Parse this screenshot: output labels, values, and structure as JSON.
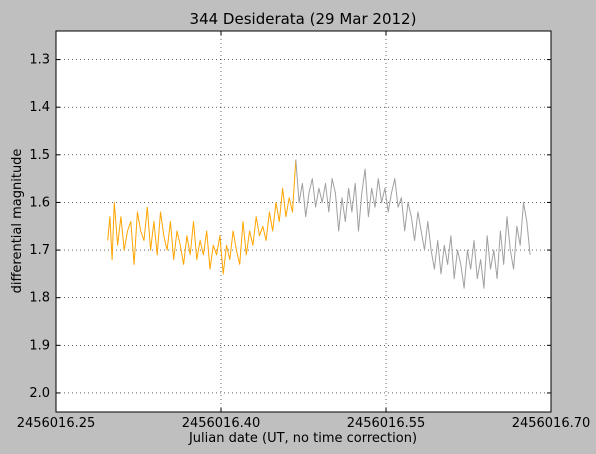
{
  "chart_data": {
    "type": "line",
    "title": "344 Desiderata (29 Mar 2012)",
    "xlabel": "Julian date (UT, no time correction)",
    "ylabel": "differential magnitude",
    "xlim": [
      2456016.25,
      2456016.7
    ],
    "ylim": [
      2.04,
      1.24
    ],
    "y_inverted": true,
    "grid": true,
    "x_ticks": [
      2456016.25,
      2456016.4,
      2456016.55,
      2456016.7
    ],
    "x_tick_labels": [
      "2456016.25",
      "2456016.40",
      "2456016.55",
      "2456016.70"
    ],
    "y_ticks": [
      1.3,
      1.4,
      1.5,
      1.6,
      1.7,
      1.8,
      1.9,
      2.0
    ],
    "y_tick_labels": [
      "1.3",
      "1.4",
      "1.5",
      "1.6",
      "1.7",
      "1.8",
      "1.9",
      "2.0"
    ],
    "series": [
      {
        "color": "#ffa500",
        "x": [
          2456016.297,
          2456016.299,
          2456016.301,
          2456016.303,
          2456016.306,
          2456016.309,
          2456016.312,
          2456016.315,
          2456016.318,
          2456016.321,
          2456016.324,
          2456016.327,
          2456016.33,
          2456016.333,
          2456016.336,
          2456016.339,
          2456016.342,
          2456016.345,
          2456016.348,
          2456016.351,
          2456016.354,
          2456016.357,
          2456016.36,
          2456016.363,
          2456016.366,
          2456016.369,
          2456016.372,
          2456016.375,
          2456016.378,
          2456016.381,
          2456016.384,
          2456016.387,
          2456016.39,
          2456016.393,
          2456016.396,
          2456016.399,
          2456016.402,
          2456016.405,
          2456016.408,
          2456016.411,
          2456016.414,
          2456016.417,
          2456016.42,
          2456016.423,
          2456016.426,
          2456016.429,
          2456016.432,
          2456016.435,
          2456016.438,
          2456016.441,
          2456016.444,
          2456016.447,
          2456016.45,
          2456016.453,
          2456016.456,
          2456016.459,
          2456016.462,
          2456016.465,
          2456016.468
        ],
        "y": [
          1.68,
          1.63,
          1.72,
          1.6,
          1.69,
          1.63,
          1.7,
          1.66,
          1.64,
          1.73,
          1.62,
          1.66,
          1.68,
          1.61,
          1.7,
          1.64,
          1.71,
          1.62,
          1.67,
          1.7,
          1.64,
          1.72,
          1.66,
          1.69,
          1.73,
          1.67,
          1.71,
          1.64,
          1.72,
          1.68,
          1.71,
          1.66,
          1.74,
          1.69,
          1.71,
          1.67,
          1.75,
          1.69,
          1.72,
          1.66,
          1.7,
          1.73,
          1.64,
          1.71,
          1.66,
          1.69,
          1.63,
          1.67,
          1.65,
          1.68,
          1.62,
          1.66,
          1.6,
          1.64,
          1.57,
          1.63,
          1.59,
          1.62,
          1.51
        ]
      },
      {
        "color": "#a0a0a0",
        "x": [
          2456016.468,
          2456016.471,
          2456016.474,
          2456016.477,
          2456016.48,
          2456016.483,
          2456016.486,
          2456016.489,
          2456016.492,
          2456016.495,
          2456016.498,
          2456016.501,
          2456016.504,
          2456016.507,
          2456016.51,
          2456016.513,
          2456016.516,
          2456016.519,
          2456016.522,
          2456016.525,
          2456016.528,
          2456016.531,
          2456016.534,
          2456016.537,
          2456016.54,
          2456016.543,
          2456016.546,
          2456016.549,
          2456016.552,
          2456016.555,
          2456016.558,
          2456016.561,
          2456016.564,
          2456016.567,
          2456016.57,
          2456016.573,
          2456016.576,
          2456016.579,
          2456016.582,
          2456016.585,
          2456016.588,
          2456016.591,
          2456016.594,
          2456016.597,
          2456016.6,
          2456016.603,
          2456016.606,
          2456016.609,
          2456016.612,
          2456016.615,
          2456016.618,
          2456016.621,
          2456016.624,
          2456016.627,
          2456016.63,
          2456016.633,
          2456016.636,
          2456016.639,
          2456016.642,
          2456016.645,
          2456016.648,
          2456016.651,
          2456016.654,
          2456016.657,
          2456016.66,
          2456016.663,
          2456016.666,
          2456016.669,
          2456016.672,
          2456016.675,
          2456016.678,
          2456016.681
        ],
        "y": [
          1.51,
          1.6,
          1.56,
          1.63,
          1.58,
          1.55,
          1.61,
          1.57,
          1.6,
          1.56,
          1.62,
          1.55,
          1.58,
          1.66,
          1.59,
          1.64,
          1.57,
          1.62,
          1.56,
          1.66,
          1.58,
          1.53,
          1.63,
          1.57,
          1.61,
          1.55,
          1.6,
          1.57,
          1.62,
          1.58,
          1.55,
          1.61,
          1.59,
          1.66,
          1.6,
          1.63,
          1.68,
          1.62,
          1.66,
          1.7,
          1.64,
          1.7,
          1.74,
          1.68,
          1.75,
          1.69,
          1.73,
          1.67,
          1.76,
          1.7,
          1.73,
          1.78,
          1.7,
          1.74,
          1.68,
          1.76,
          1.72,
          1.78,
          1.67,
          1.74,
          1.7,
          1.76,
          1.66,
          1.73,
          1.63,
          1.7,
          1.74,
          1.65,
          1.69,
          1.6,
          1.64,
          1.71
        ]
      }
    ]
  }
}
